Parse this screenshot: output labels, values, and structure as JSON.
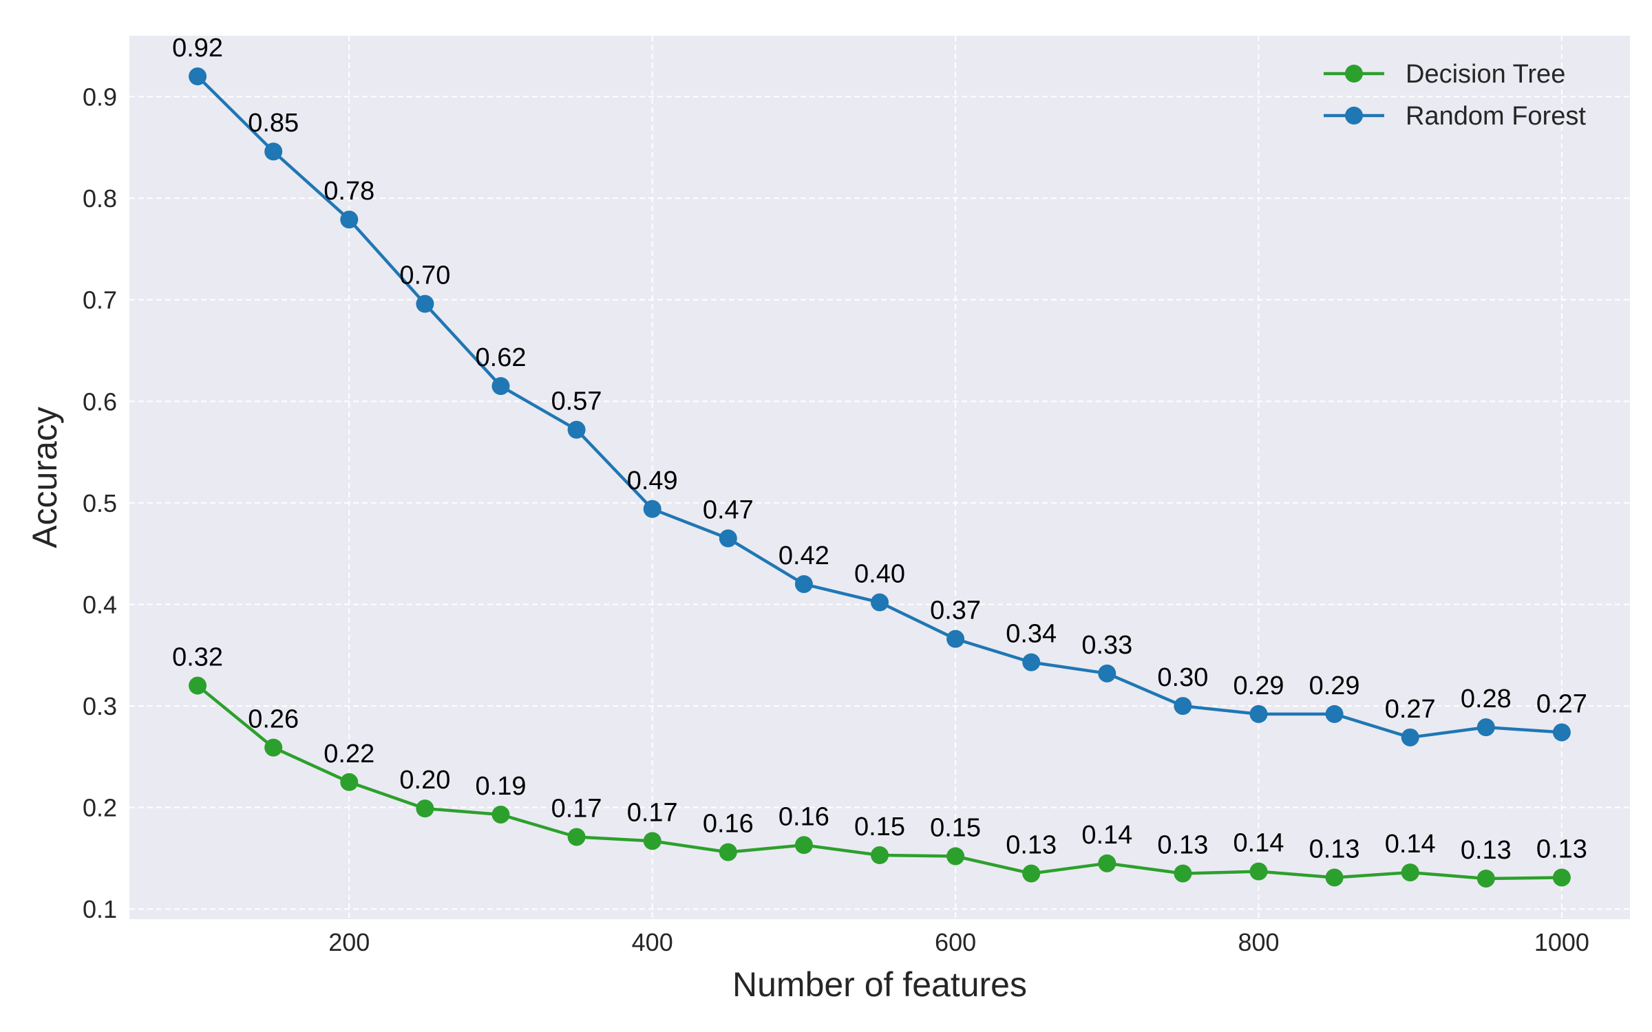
{
  "chart_data": {
    "type": "line",
    "title": "",
    "xlabel": "Number of features",
    "ylabel": "Accuracy",
    "xlim": [
      55,
      1045
    ],
    "ylim": [
      0.09,
      0.96
    ],
    "x_ticks": [
      200,
      400,
      600,
      800,
      1000
    ],
    "y_ticks": [
      0.1,
      0.2,
      0.3,
      0.4,
      0.5,
      0.6,
      0.7,
      0.8,
      0.9
    ],
    "grid": true,
    "legend_position": "top-right",
    "x": [
      100,
      150,
      200,
      250,
      300,
      350,
      400,
      450,
      500,
      550,
      600,
      650,
      700,
      750,
      800,
      850,
      900,
      950,
      1000
    ],
    "series": [
      {
        "name": "Decision Tree",
        "color": "#2ca02c",
        "values": [
          0.32,
          0.259,
          0.225,
          0.199,
          0.193,
          0.171,
          0.167,
          0.156,
          0.163,
          0.153,
          0.152,
          0.135,
          0.145,
          0.135,
          0.137,
          0.131,
          0.136,
          0.13,
          0.131
        ],
        "labels": [
          "0.32",
          "0.26",
          "0.22",
          "0.20",
          "0.19",
          "0.17",
          "0.17",
          "0.16",
          "0.16",
          "0.15",
          "0.15",
          "0.13",
          "0.14",
          "0.13",
          "0.14",
          "0.13",
          "0.14",
          "0.13",
          "0.13"
        ]
      },
      {
        "name": "Random Forest",
        "color": "#1f77b4",
        "values": [
          0.92,
          0.846,
          0.779,
          0.696,
          0.615,
          0.572,
          0.494,
          0.465,
          0.42,
          0.402,
          0.366,
          0.343,
          0.332,
          0.3,
          0.292,
          0.292,
          0.269,
          0.279,
          0.274
        ],
        "labels": [
          "0.92",
          "0.85",
          "0.78",
          "0.70",
          "0.62",
          "0.57",
          "0.49",
          "0.47",
          "0.42",
          "0.40",
          "0.37",
          "0.34",
          "0.33",
          "0.30",
          "0.29",
          "0.29",
          "0.27",
          "0.28",
          "0.27"
        ]
      }
    ]
  },
  "colors": {
    "plot_background": "#eaeaf2",
    "grid": "#ffffff"
  }
}
